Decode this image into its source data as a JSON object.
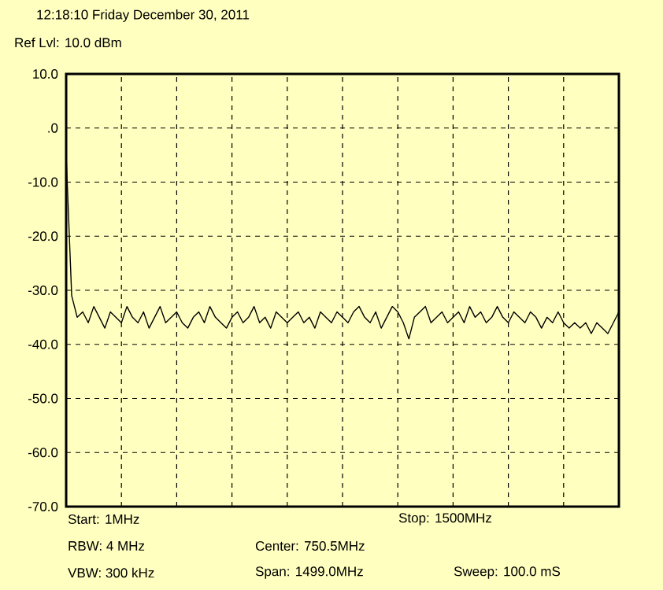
{
  "chart_data": {
    "type": "line",
    "title": "12:18:10 Friday December 30, 2011",
    "subtitle": "Ref Lvl: 10.0 dBm",
    "annotations": [
      "Start: 1MHz",
      "Stop: 1500MHz",
      "RBW: 4 MHz",
      "Center: 750.5MHz",
      "VBW: 300 kHz",
      "Span: 1499.0MHz",
      "Sweep: 100.0 mS"
    ],
    "categories": [
      null,
      null,
      null,
      null,
      null,
      null,
      null,
      null,
      null,
      null,
      null,
      null,
      null,
      null,
      null,
      null,
      null,
      null,
      null,
      null,
      null,
      null,
      null,
      null,
      null,
      null,
      null,
      null,
      null,
      null,
      null,
      null,
      null,
      null,
      null,
      null,
      null,
      null,
      null,
      null,
      null,
      null,
      null,
      null,
      null,
      null,
      null,
      null,
      null,
      null,
      null,
      null,
      null,
      null,
      null,
      null,
      null,
      null,
      null,
      null,
      null,
      null,
      null,
      null,
      null,
      null,
      null,
      null,
      null,
      null,
      null,
      null,
      null,
      null,
      null,
      null,
      null,
      null,
      null,
      null,
      null,
      null,
      null,
      null,
      null,
      null,
      null,
      null,
      null,
      null,
      null,
      null,
      null,
      null,
      null,
      null,
      null,
      null,
      null,
      null,
      null
    ],
    "series": [
      {
        "color": "#000000",
        "values": [
          -5,
          -31,
          -35,
          -34,
          -36,
          -33,
          -35,
          -37,
          -34,
          -35,
          -36,
          -33,
          -35,
          -36,
          -34,
          -37,
          -35,
          -33,
          -36,
          -35,
          -34,
          -36,
          -37,
          -35,
          -34,
          -36,
          -33,
          -35,
          -36,
          -37,
          -35,
          -34,
          -36,
          -35,
          -33,
          -36,
          -35,
          -37,
          -34,
          -35,
          -36,
          -35,
          -34,
          -36,
          -35,
          -37,
          -34,
          -35,
          -36,
          -34,
          -35,
          -36,
          -34,
          -33,
          -35,
          -36,
          -34,
          -37,
          -35,
          -33,
          -34,
          -36,
          -39,
          -35,
          -34,
          -33,
          -36,
          -35,
          -34,
          -36,
          -35,
          -34,
          -36,
          -33,
          -35,
          -34,
          -36,
          -35,
          -33,
          -35,
          -36,
          -34,
          -35,
          -36,
          -34,
          -35,
          -37,
          -35,
          -36,
          -34,
          -36,
          -37,
          -36,
          -37,
          -36,
          -38,
          -36,
          -37,
          -38,
          -36,
          -34
        ]
      }
    ],
    "ylim": [
      -70,
      10
    ],
    "yticks": [
      {
        "value": -70,
        "label": "-70.0"
      },
      {
        "value": -60,
        "label": "-60.0"
      },
      {
        "value": -50,
        "label": "-50.0"
      },
      {
        "value": -40,
        "label": "-40.0"
      },
      {
        "value": -30,
        "label": "-30.0"
      },
      {
        "value": -20,
        "label": "-20.0"
      },
      {
        "value": -10,
        "label": "-10.0"
      },
      {
        "value": 0,
        "label": ".0"
      },
      {
        "value": 10,
        "label": "10.0"
      }
    ],
    "grid": true,
    "tick_labels": "y",
    "line_style": "solid"
  }
}
